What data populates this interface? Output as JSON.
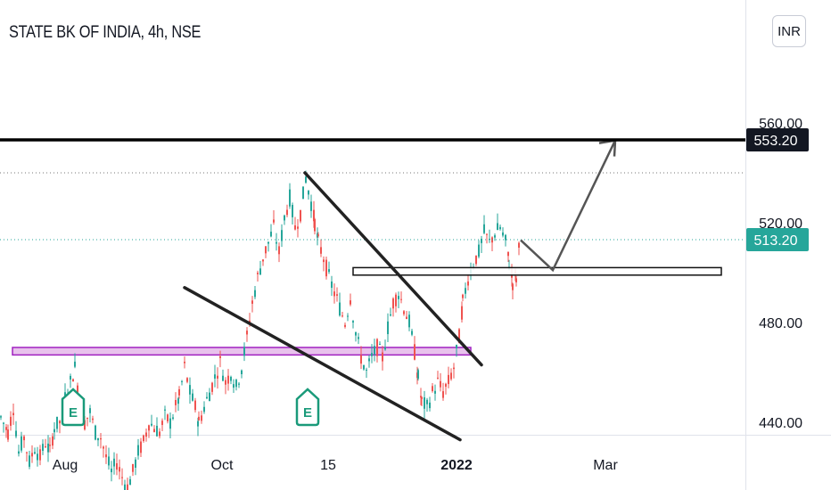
{
  "header": {
    "title": "STATE BK OF INDIA, 4h, NSE",
    "currency": "INR"
  },
  "colors": {
    "up": "#26a69a",
    "down": "#ef5350",
    "current_price_tag": "#26a69a",
    "level_tag": "#131722",
    "trendlines": "#222222",
    "projection_arrow": "#555555",
    "magenta_zone": "#e8c2ec",
    "magenta_zone_border": "#a020c0",
    "earnings_marker": "#1a9a7a"
  },
  "chart_data": {
    "type": "candlestick",
    "symbol": "STATE BK OF INDIA",
    "interval": "4h",
    "exchange": "NSE",
    "y_axis_ticks": [
      "440.00",
      "480.00",
      "520.00",
      "560.00"
    ],
    "x_axis_ticks": [
      "Aug",
      "Oct",
      "15",
      "2022",
      "Mar"
    ],
    "ylim": [
      415,
      570
    ],
    "current_price": 513.2,
    "current_price_label": "513.20",
    "resistance_level": 553.2,
    "resistance_label": "553.20",
    "earnings_markers": [
      "E",
      "E"
    ],
    "zones": [
      {
        "name": "magenta-support-zone",
        "low": 467,
        "high": 470
      },
      {
        "name": "breakout-retest-zone",
        "low": 499,
        "high": 502
      }
    ],
    "price_path": [
      [
        0,
        442
      ],
      [
        8,
        436
      ],
      [
        14,
        446
      ],
      [
        20,
        428
      ],
      [
        26,
        434
      ],
      [
        32,
        424
      ],
      [
        38,
        430
      ],
      [
        44,
        426
      ],
      [
        50,
        432
      ],
      [
        55,
        428
      ],
      [
        60,
        438
      ],
      [
        66,
        440
      ],
      [
        72,
        450
      ],
      [
        78,
        456
      ],
      [
        83,
        462
      ],
      [
        88,
        450
      ],
      [
        94,
        440
      ],
      [
        100,
        444
      ],
      [
        106,
        436
      ],
      [
        112,
        434
      ],
      [
        118,
        426
      ],
      [
        124,
        420
      ],
      [
        130,
        424
      ],
      [
        136,
        418
      ],
      [
        142,
        414
      ],
      [
        148,
        420
      ],
      [
        154,
        428
      ],
      [
        160,
        432
      ],
      [
        166,
        440
      ],
      [
        172,
        438
      ],
      [
        178,
        436
      ],
      [
        184,
        442
      ],
      [
        190,
        440
      ],
      [
        196,
        446
      ],
      [
        200,
        450
      ],
      [
        206,
        462
      ],
      [
        212,
        452
      ],
      [
        218,
        446
      ],
      [
        222,
        440
      ],
      [
        228,
        446
      ],
      [
        234,
        452
      ],
      [
        240,
        458
      ],
      [
        246,
        464
      ],
      [
        252,
        456
      ],
      [
        258,
        460
      ],
      [
        264,
        454
      ],
      [
        270,
        462
      ],
      [
        276,
        474
      ],
      [
        282,
        488
      ],
      [
        288,
        498
      ],
      [
        294,
        506
      ],
      [
        300,
        512
      ],
      [
        306,
        518
      ],
      [
        312,
        508
      ],
      [
        318,
        522
      ],
      [
        324,
        530
      ],
      [
        330,
        518
      ],
      [
        336,
        524
      ],
      [
        342,
        538
      ],
      [
        348,
        528
      ],
      [
        352,
        520
      ],
      [
        356,
        512
      ],
      [
        362,
        506
      ],
      [
        368,
        498
      ],
      [
        374,
        492
      ],
      [
        380,
        486
      ],
      [
        386,
        480
      ],
      [
        392,
        490
      ],
      [
        398,
        476
      ],
      [
        404,
        466
      ],
      [
        410,
        460
      ],
      [
        416,
        466
      ],
      [
        422,
        470
      ],
      [
        428,
        466
      ],
      [
        434,
        478
      ],
      [
        440,
        488
      ],
      [
        446,
        492
      ],
      [
        452,
        486
      ],
      [
        458,
        480
      ],
      [
        464,
        468
      ],
      [
        468,
        458
      ],
      [
        472,
        448
      ],
      [
        478,
        446
      ],
      [
        484,
        452
      ],
      [
        490,
        456
      ],
      [
        496,
        452
      ],
      [
        502,
        456
      ],
      [
        508,
        462
      ],
      [
        514,
        474
      ],
      [
        518,
        488
      ],
      [
        524,
        498
      ],
      [
        530,
        504
      ],
      [
        536,
        508
      ],
      [
        542,
        516
      ],
      [
        548,
        512
      ],
      [
        554,
        516
      ],
      [
        560,
        518
      ],
      [
        566,
        512
      ],
      [
        570,
        504
      ],
      [
        574,
        496
      ],
      [
        578,
        498
      ],
      [
        582,
        513
      ]
    ],
    "annotations": [
      {
        "name": "falling-resistance-trendline",
        "from": [
          342,
          540
        ],
        "to": [
          540,
          463
        ]
      },
      {
        "name": "falling-support-trendline",
        "from": [
          207,
          494
        ],
        "to": [
          516,
          433
        ]
      },
      {
        "name": "projected-move",
        "points": [
          [
            584,
            513
          ],
          [
            620,
            501
          ],
          [
            690,
            553
          ]
        ]
      }
    ]
  }
}
